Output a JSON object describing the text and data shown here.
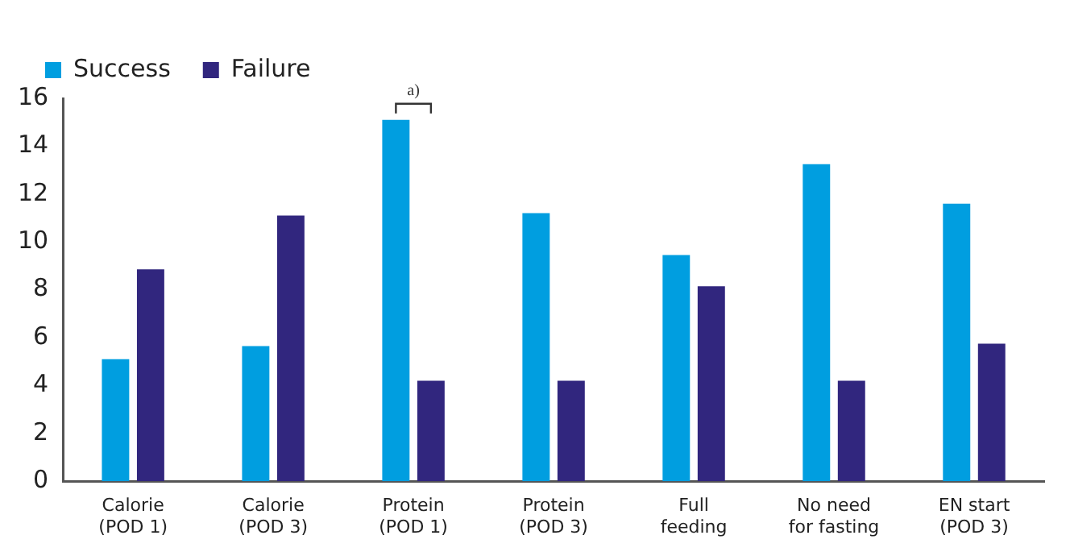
{
  "chart_data": {
    "type": "bar",
    "categories": [
      "Calorie\n(POD 1)",
      "Calorie\n(POD 3)",
      "Protein\n(POD 1)",
      "Protein\n(POD 3)",
      "Full\nfeeding",
      "No need\nfor fasting",
      "EN start\n(POD 3)"
    ],
    "series": [
      {
        "name": "Success",
        "color": "#009ee0",
        "values": [
          5.1,
          5.65,
          15.1,
          11.2,
          9.45,
          13.25,
          11.6
        ]
      },
      {
        "name": "Failure",
        "color": "#31267e",
        "values": [
          8.85,
          11.1,
          4.2,
          4.2,
          8.15,
          4.2,
          5.75
        ]
      }
    ],
    "ylim": [
      0,
      16
    ],
    "yticks": [
      0,
      2,
      4,
      6,
      8,
      10,
      12,
      14,
      16
    ],
    "grid": false,
    "legend": "top left",
    "annotations": [
      {
        "text": "a)",
        "x": "Protein\n(POD 1)",
        "y": 15.1
      }
    ]
  }
}
